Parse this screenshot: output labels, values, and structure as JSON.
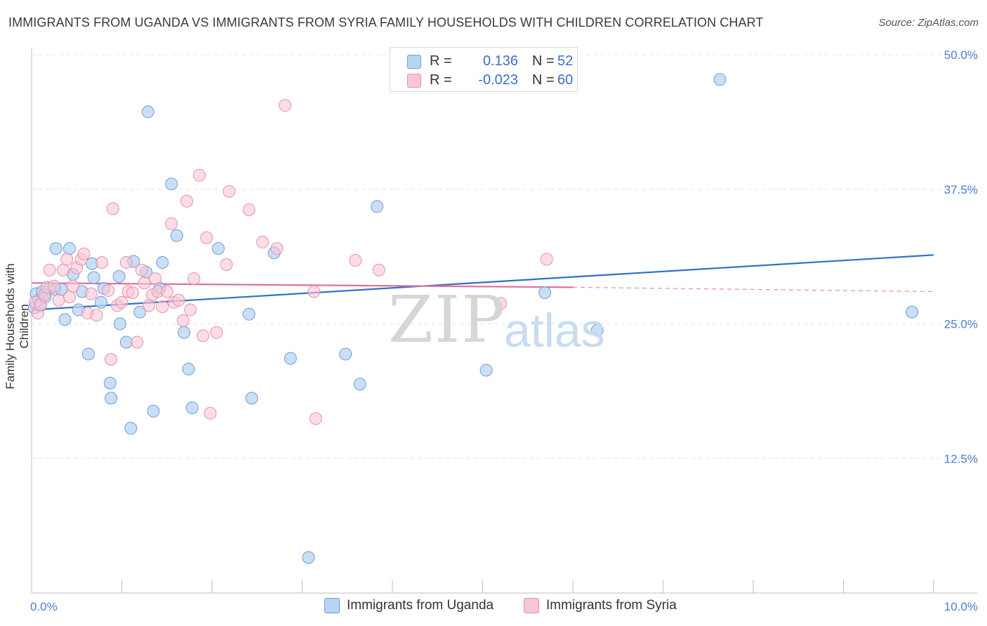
{
  "title": "IMMIGRANTS FROM UGANDA VS IMMIGRANTS FROM SYRIA FAMILY HOUSEHOLDS WITH CHILDREN CORRELATION CHART",
  "source": "Source: ZipAtlas.com",
  "watermark": {
    "zip": "ZIP",
    "atlas": "atlas"
  },
  "legend": {
    "rows": [
      {
        "r_label": "R =",
        "r_value": "0.136",
        "n_label": "N =",
        "n_value": "52"
      },
      {
        "r_label": "R =",
        "r_value": "-0.023",
        "n_label": "N =",
        "n_value": "60"
      }
    ]
  },
  "bottom_legend": [
    "Immigrants from Uganda",
    "Immigrants from Syria"
  ],
  "colors": {
    "uganda_fill": "#b8d4f2",
    "uganda_stroke": "#6a9fd8",
    "uganda_line": "#2f6fca",
    "syria_fill": "#f8c6d6",
    "syria_stroke": "#e88fad",
    "syria_line": "#e0709a",
    "tick_label": "#4a7fcf",
    "grid": "#e4e4e4"
  },
  "chart_data": {
    "type": "scatter",
    "title": "IMMIGRANTS FROM UGANDA VS IMMIGRANTS FROM SYRIA FAMILY HOUSEHOLDS WITH CHILDREN CORRELATION CHART",
    "xlabel": "",
    "ylabel": "Family Households with Children",
    "xlim": [
      0,
      10
    ],
    "ylim": [
      0,
      50
    ],
    "x_tick_labels": [
      {
        "value": 0,
        "label": "0.0%"
      },
      {
        "value": 10,
        "label": "10.0%"
      }
    ],
    "y_tick_labels": [
      {
        "value": 12.5,
        "label": "12.5%"
      },
      {
        "value": 25,
        "label": "25.0%"
      },
      {
        "value": 37.5,
        "label": "37.5%"
      },
      {
        "value": 50,
        "label": "50.0%"
      }
    ],
    "series": [
      {
        "name": "Immigrants from Uganda",
        "r": 0.136,
        "n": 52,
        "trend": {
          "x0": 0,
          "y0": 26.3,
          "x1": 10,
          "y1": 31.4
        },
        "points": [
          [
            0.03,
            26.5
          ],
          [
            0.05,
            27.8
          ],
          [
            0.08,
            27.2
          ],
          [
            0.1,
            26.7
          ],
          [
            0.12,
            28.0
          ],
          [
            0.15,
            27.5
          ],
          [
            0.2,
            28.3
          ],
          [
            0.26,
            28.2
          ],
          [
            0.27,
            32.0
          ],
          [
            0.33,
            28.2
          ],
          [
            0.37,
            25.4
          ],
          [
            0.42,
            32.0
          ],
          [
            0.46,
            29.6
          ],
          [
            0.52,
            26.3
          ],
          [
            0.56,
            28.0
          ],
          [
            0.63,
            22.2
          ],
          [
            0.67,
            30.6
          ],
          [
            0.69,
            29.3
          ],
          [
            0.77,
            27.0
          ],
          [
            0.8,
            28.3
          ],
          [
            0.87,
            19.5
          ],
          [
            0.88,
            18.1
          ],
          [
            0.98,
            25.0
          ],
          [
            0.97,
            29.4
          ],
          [
            1.05,
            23.3
          ],
          [
            1.1,
            15.3
          ],
          [
            1.13,
            30.8
          ],
          [
            1.2,
            26.1
          ],
          [
            1.27,
            29.8
          ],
          [
            1.29,
            44.7
          ],
          [
            1.35,
            16.9
          ],
          [
            1.42,
            28.3
          ],
          [
            1.45,
            30.7
          ],
          [
            1.55,
            38.0
          ],
          [
            1.61,
            33.2
          ],
          [
            1.69,
            24.2
          ],
          [
            1.74,
            20.8
          ],
          [
            1.78,
            17.2
          ],
          [
            2.07,
            32.0
          ],
          [
            2.41,
            25.9
          ],
          [
            2.44,
            18.1
          ],
          [
            2.69,
            31.6
          ],
          [
            2.87,
            21.8
          ],
          [
            3.07,
            3.3
          ],
          [
            3.48,
            22.2
          ],
          [
            3.64,
            19.4
          ],
          [
            3.83,
            35.9
          ],
          [
            5.04,
            20.7
          ],
          [
            5.69,
            27.9
          ],
          [
            6.27,
            24.4
          ],
          [
            7.63,
            47.7
          ],
          [
            9.76,
            26.1
          ]
        ]
      },
      {
        "name": "Immigrants from Syria",
        "r": -0.023,
        "n": 60,
        "trend": {
          "x0": 0,
          "y0": 28.8,
          "x1": 6.0,
          "y1": 28.4,
          "dash_x1": 10,
          "dash_y1": 28.0
        },
        "points": [
          [
            0.04,
            27.0
          ],
          [
            0.07,
            26.0
          ],
          [
            0.1,
            26.8
          ],
          [
            0.14,
            27.7
          ],
          [
            0.17,
            28.4
          ],
          [
            0.2,
            30.0
          ],
          [
            0.25,
            28.5
          ],
          [
            0.3,
            27.2
          ],
          [
            0.35,
            30.0
          ],
          [
            0.39,
            31.0
          ],
          [
            0.42,
            27.5
          ],
          [
            0.46,
            28.5
          ],
          [
            0.5,
            30.2
          ],
          [
            0.55,
            31.0
          ],
          [
            0.58,
            31.5
          ],
          [
            0.62,
            26.0
          ],
          [
            0.66,
            27.8
          ],
          [
            0.72,
            25.8
          ],
          [
            0.78,
            30.7
          ],
          [
            0.85,
            28.1
          ],
          [
            0.88,
            21.7
          ],
          [
            0.9,
            35.7
          ],
          [
            0.95,
            26.7
          ],
          [
            1.0,
            27.0
          ],
          [
            1.05,
            30.7
          ],
          [
            1.07,
            28.0
          ],
          [
            1.12,
            27.9
          ],
          [
            1.17,
            23.3
          ],
          [
            1.22,
            30.0
          ],
          [
            1.25,
            28.8
          ],
          [
            1.3,
            26.7
          ],
          [
            1.34,
            27.7
          ],
          [
            1.37,
            29.2
          ],
          [
            1.4,
            28.0
          ],
          [
            1.45,
            26.6
          ],
          [
            1.5,
            28.0
          ],
          [
            1.55,
            34.3
          ],
          [
            1.58,
            27.0
          ],
          [
            1.63,
            27.2
          ],
          [
            1.68,
            25.3
          ],
          [
            1.72,
            36.4
          ],
          [
            1.76,
            26.3
          ],
          [
            1.8,
            29.2
          ],
          [
            1.86,
            38.8
          ],
          [
            1.9,
            23.9
          ],
          [
            1.94,
            33.0
          ],
          [
            1.98,
            16.7
          ],
          [
            2.05,
            24.2
          ],
          [
            2.16,
            30.5
          ],
          [
            2.19,
            37.3
          ],
          [
            2.41,
            35.6
          ],
          [
            2.56,
            32.6
          ],
          [
            2.72,
            32.0
          ],
          [
            2.81,
            45.3
          ],
          [
            3.13,
            28.0
          ],
          [
            3.15,
            16.2
          ],
          [
            3.59,
            30.9
          ],
          [
            3.85,
            30.0
          ],
          [
            5.2,
            26.9
          ],
          [
            5.71,
            31.0
          ]
        ]
      }
    ]
  }
}
